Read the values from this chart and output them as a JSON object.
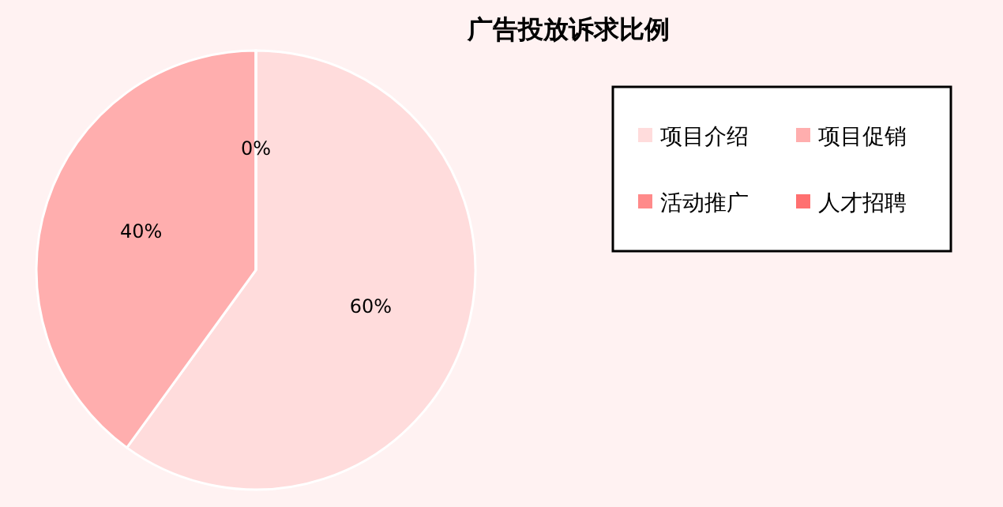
{
  "chart_data": {
    "type": "pie",
    "title": "广告投放诉求比例",
    "categories": [
      "项目介绍",
      "项目促销",
      "活动推广",
      "人才招聘"
    ],
    "values": [
      60,
      40,
      0,
      0
    ],
    "colors": [
      "#ffdcdc",
      "#ffaeae",
      "#ff8a8a",
      "#ff7070"
    ],
    "value_labels": [
      "60%",
      "40%",
      "0%",
      null
    ],
    "legend": "right"
  }
}
